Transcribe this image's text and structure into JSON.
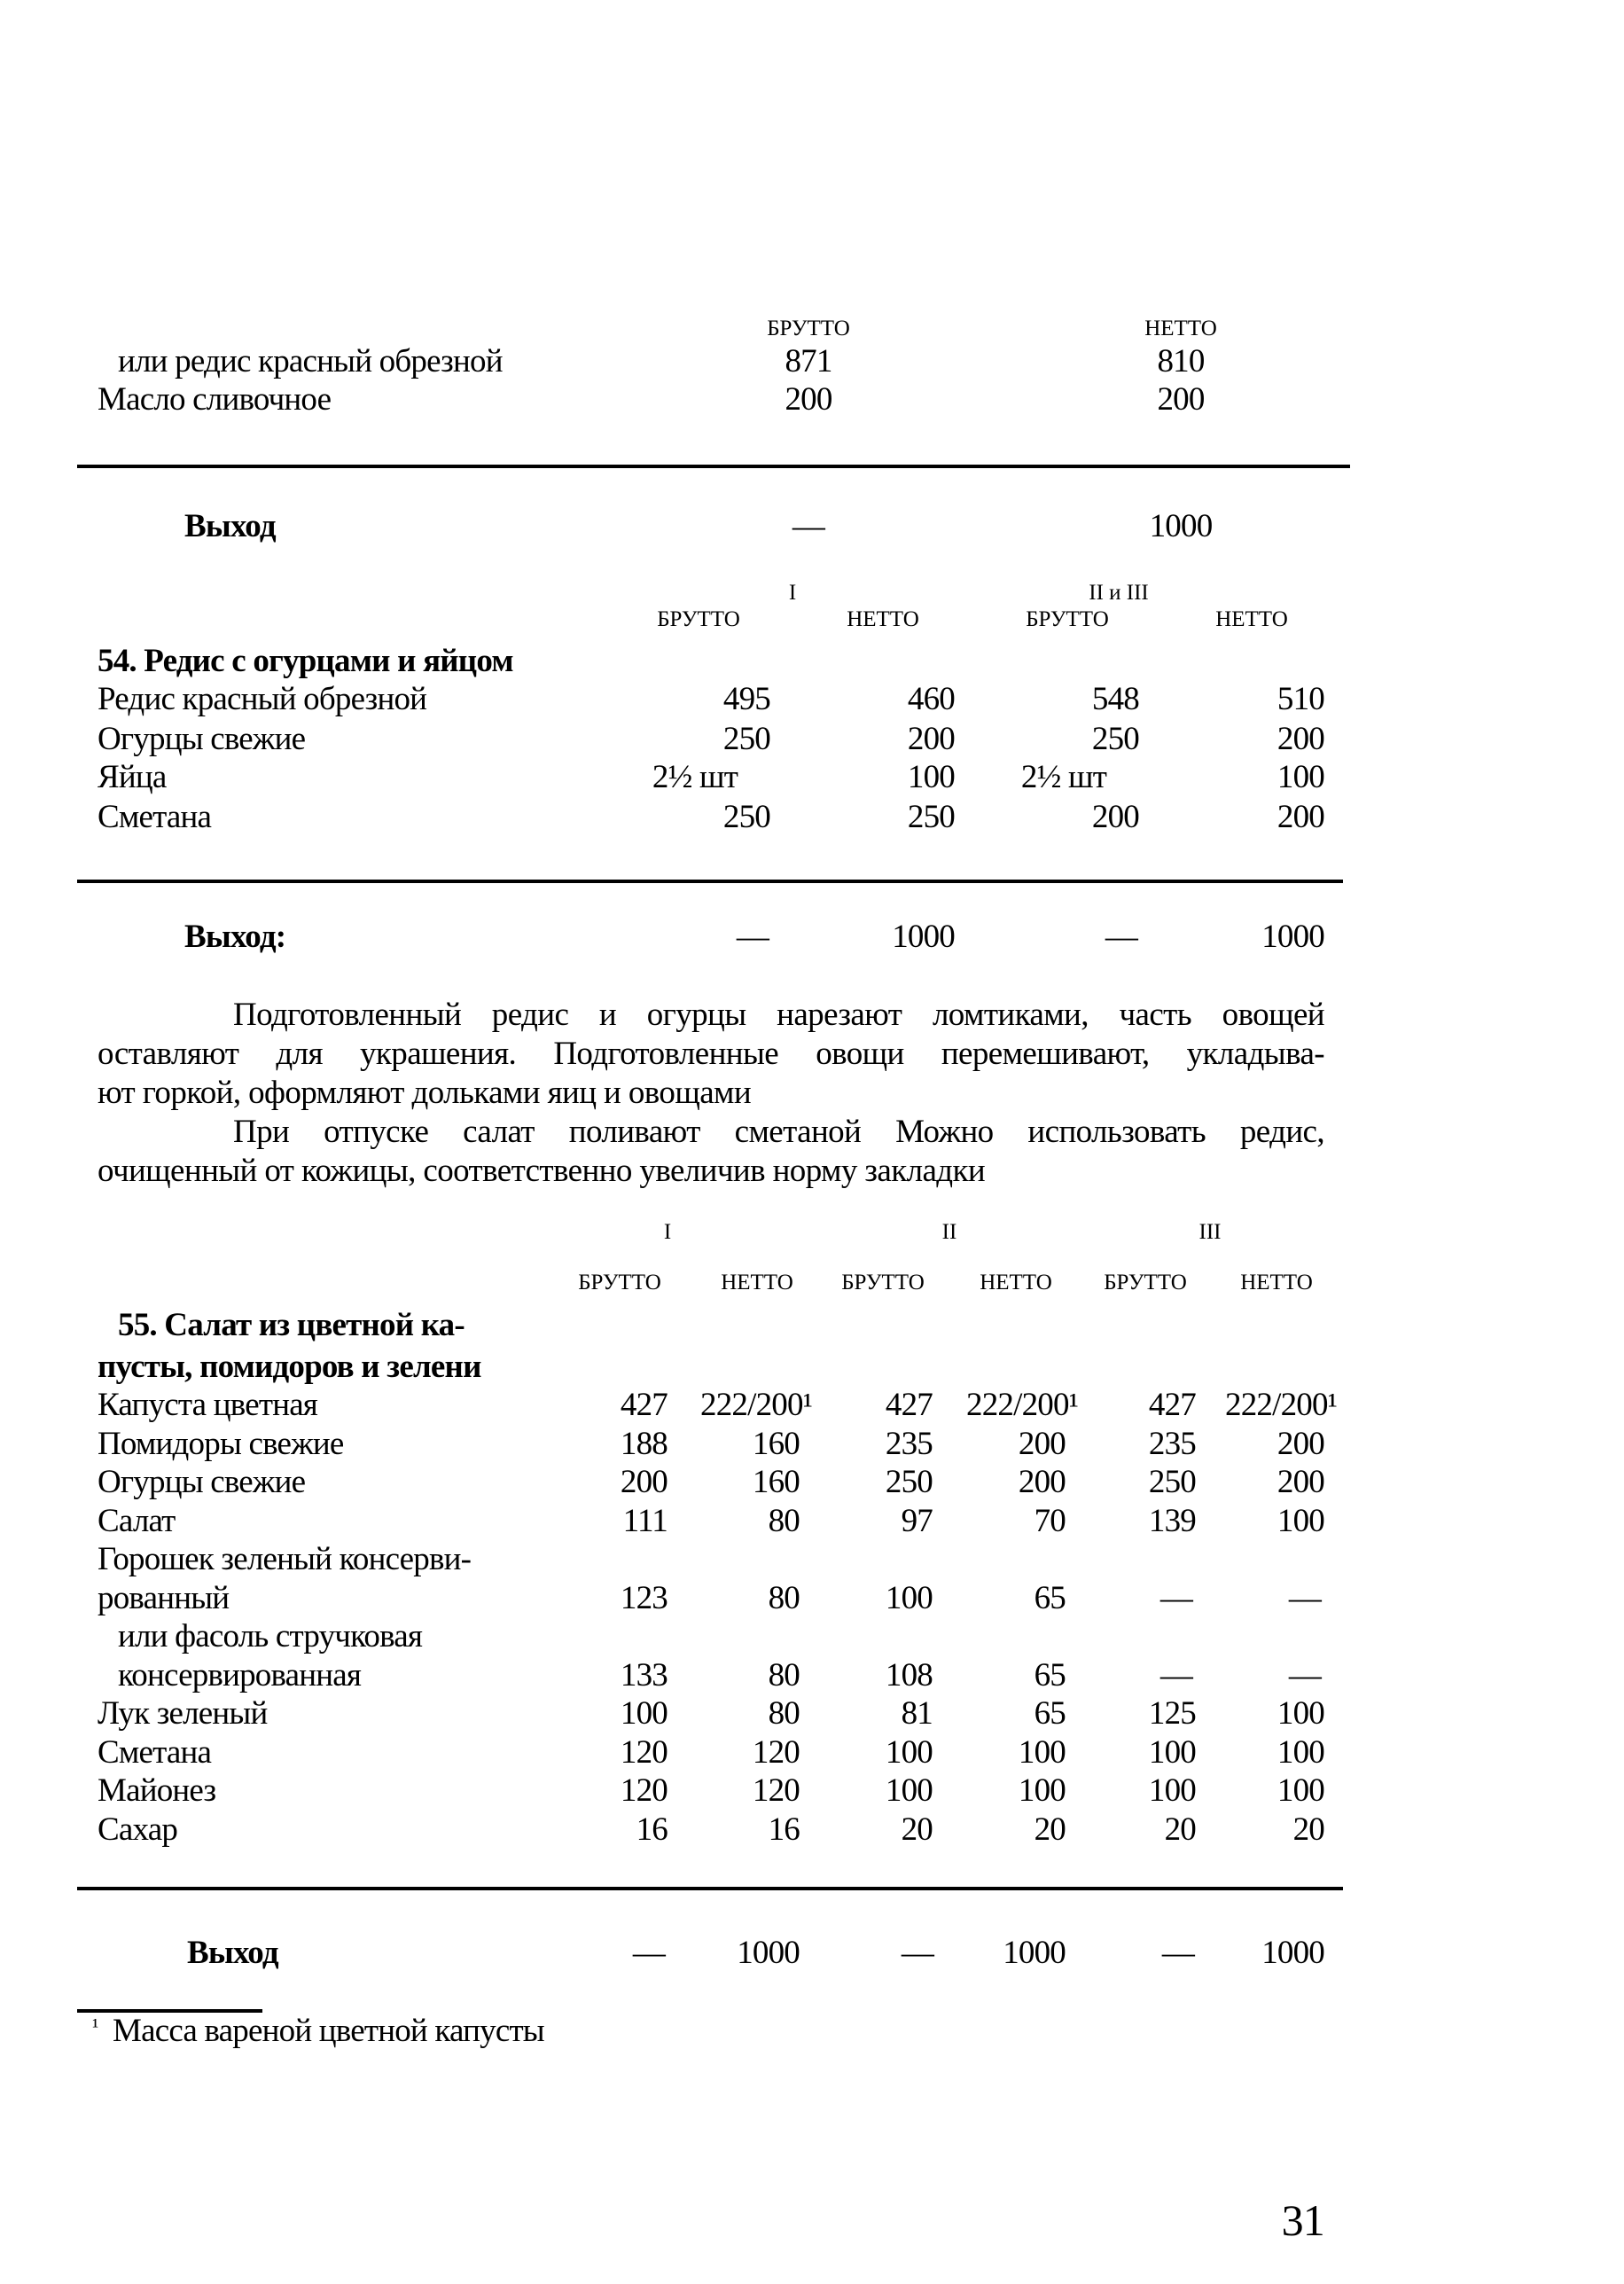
{
  "section53": {
    "headers": [
      "БРУТТО",
      "НЕТТО"
    ],
    "rows": [
      {
        "name": "или редис красный обрезной",
        "values": [
          "871",
          "810"
        ]
      },
      {
        "name": "Масло сливочное",
        "values": [
          "200",
          "200"
        ]
      }
    ],
    "yield": {
      "label": "Выход",
      "values": [
        "—",
        "1000"
      ]
    }
  },
  "section54": {
    "title": "54. Редис с огурцами и яйцом",
    "groups": [
      "I",
      "II и III"
    ],
    "headers": [
      "БРУТТО",
      "НЕТТО",
      "БРУТТО",
      "НЕТТО"
    ],
    "rows": [
      {
        "name": "Редис красный обрезной",
        "values": [
          "495",
          "460",
          "548",
          "510"
        ]
      },
      {
        "name": "Огурцы свежие",
        "values": [
          "250",
          "200",
          "250",
          "200"
        ]
      },
      {
        "name": "Яйца",
        "values": [
          "2½ шт",
          "100",
          "2½ шт",
          "100"
        ]
      },
      {
        "name": "Сметана",
        "values": [
          "250",
          "250",
          "200",
          "200"
        ]
      }
    ],
    "yield": {
      "label": "Выход:",
      "values": [
        "—",
        "1000",
        "—",
        "1000"
      ]
    }
  },
  "paragraphs": [
    [
      "Подготовленный редис и огурцы нарезают ломтиками, часть овощей",
      "оставляют для украшения. Подготовленные овощи перемешивают, укладыва-",
      "ют горкой, оформляют дольками яиц и овощами"
    ],
    [
      "При отпуске салат поливают сметаной Можно использовать редис,",
      "очищенный от кожицы, соответственно увеличив норму закладки"
    ]
  ],
  "section55": {
    "title_lines": [
      "55. Салат из цветной ка-",
      "пусты, помидоров и зелени"
    ],
    "groups": [
      "I",
      "II",
      "III"
    ],
    "headers": [
      "БРУТТО",
      "НЕТТО",
      "БРУТТО",
      "НЕТТО",
      "БРУТТО",
      "НЕТТО"
    ],
    "rows": [
      {
        "name": [
          "Капуста цветная"
        ],
        "values": [
          "427",
          "222/200¹",
          "427",
          "222/200¹",
          "427",
          "222/200¹"
        ]
      },
      {
        "name": [
          "Помидоры свежие"
        ],
        "values": [
          "188",
          "160",
          "235",
          "200",
          "235",
          "200"
        ]
      },
      {
        "name": [
          "Огурцы свежие"
        ],
        "values": [
          "200",
          "160",
          "250",
          "200",
          "250",
          "200"
        ]
      },
      {
        "name": [
          "Салат"
        ],
        "values": [
          "111",
          "80",
          "97",
          "70",
          "139",
          "100"
        ]
      },
      {
        "name": [
          "Горошек зеленый консерви-",
          "рованный"
        ],
        "values": [
          "123",
          "80",
          "100",
          "65",
          "—",
          "—"
        ]
      },
      {
        "name": [
          "или фасоль стручковая",
          "консервированная"
        ],
        "values": [
          "133",
          "80",
          "108",
          "65",
          "—",
          "—"
        ],
        "indent": true
      },
      {
        "name": [
          "Лук зеленый"
        ],
        "values": [
          "100",
          "80",
          "81",
          "65",
          "125",
          "100"
        ]
      },
      {
        "name": [
          "Сметана"
        ],
        "values": [
          "120",
          "120",
          "100",
          "100",
          "100",
          "100"
        ]
      },
      {
        "name": [
          "Майонез"
        ],
        "values": [
          "120",
          "120",
          "100",
          "100",
          "100",
          "100"
        ]
      },
      {
        "name": [
          "Сахар"
        ],
        "values": [
          "16",
          "16",
          "20",
          "20",
          "20",
          "20"
        ]
      }
    ],
    "yield": {
      "label": "Выход",
      "values": [
        "—",
        "1000",
        "—",
        "1000",
        "—",
        "1000"
      ]
    }
  },
  "footnote": {
    "marker": "¹",
    "text": "Масса вареной цветной капусты"
  },
  "page_number": "31"
}
